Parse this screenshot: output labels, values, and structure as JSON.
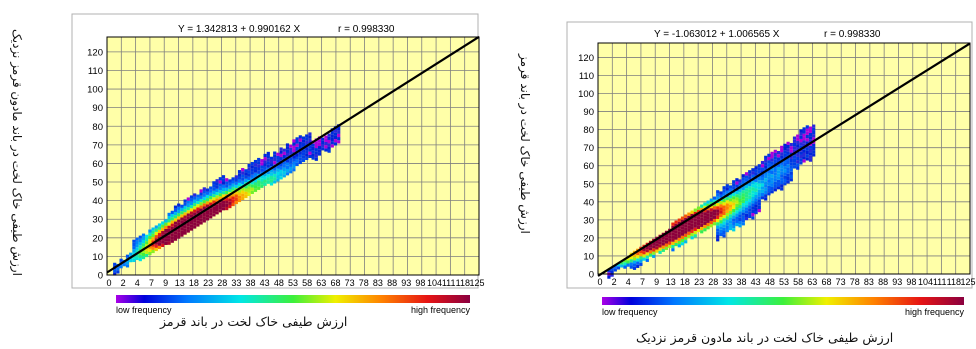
{
  "colors": {
    "plot_bg": "#ffffa8",
    "grid": "#7f7f7f",
    "fit_line": "#000000",
    "legend_low": "#0000e0",
    "legend_high": "#8b0040"
  },
  "chart_data": [
    {
      "type": "heatmap",
      "equation": "Y = 1.342813 + 0.990162 X",
      "r_label": "r = 0.998330",
      "ylabel": "ارزش طیفی خاک لخت در باند مادون قرمز نزدیک",
      "xlabel": "ارزش طیفی خاک لخت در باند قرمز",
      "legend": {
        "low": "low frequency",
        "high": "high frequency"
      },
      "x_ticks": [
        "0",
        "2",
        "4",
        "7",
        "9",
        "13",
        "18",
        "23",
        "28",
        "33",
        "38",
        "43",
        "48",
        "53",
        "58",
        "63",
        "68",
        "73",
        "78",
        "83",
        "88",
        "93",
        "98",
        "104",
        "111",
        "118",
        "125"
      ],
      "y_ticks": [
        "0",
        "10",
        "20",
        "30",
        "40",
        "50",
        "60",
        "70",
        "80",
        "90",
        "100",
        "110",
        "120"
      ],
      "xlim": [
        0,
        128
      ],
      "ylim": [
        0,
        128
      ],
      "fit": {
        "intercept": 1.342813,
        "slope": 0.990162
      },
      "density_clusters": [
        {
          "x": 5,
          "y": 5.5,
          "rx": 2.6,
          "ry": 1.6,
          "rot": 45,
          "w": 0.1
        },
        {
          "x": 11,
          "y": 11.5,
          "rx": 4.2,
          "ry": 2.2,
          "rot": 45,
          "w": 0.25
        },
        {
          "x": 18,
          "y": 18.5,
          "rx": 5.5,
          "ry": 3.0,
          "rot": 42,
          "w": 0.6
        },
        {
          "x": 24,
          "y": 24.5,
          "rx": 6.5,
          "ry": 3.5,
          "rot": 40,
          "w": 0.9
        },
        {
          "x": 31,
          "y": 31,
          "rx": 7,
          "ry": 3.8,
          "rot": 40,
          "w": 1.0
        },
        {
          "x": 38,
          "y": 37.5,
          "rx": 6.5,
          "ry": 3.8,
          "rot": 40,
          "w": 0.65
        },
        {
          "x": 46,
          "y": 44,
          "rx": 6,
          "ry": 3.5,
          "rot": 38,
          "w": 0.4
        },
        {
          "x": 55,
          "y": 52,
          "rx": 5.5,
          "ry": 3.0,
          "rot": 38,
          "w": 0.25
        },
        {
          "x": 63,
          "y": 59,
          "rx": 5.0,
          "ry": 2.5,
          "rot": 38,
          "w": 0.1
        }
      ],
      "point_spread": [
        {
          "x0": 2,
          "x1": 8,
          "below": 2,
          "above": 4
        },
        {
          "x0": 8,
          "x1": 20,
          "below": 3,
          "above": 10
        },
        {
          "x0": 20,
          "x1": 40,
          "below": 4,
          "above": 14
        },
        {
          "x0": 40,
          "x1": 55,
          "below": 5,
          "above": 11
        },
        {
          "x0": 55,
          "x1": 70,
          "below": 7,
          "above": 9
        },
        {
          "x0": 70,
          "x1": 80,
          "below": 9,
          "above": 2
        }
      ]
    },
    {
      "type": "heatmap",
      "equation": "Y = -1.063012 + 1.006565 X",
      "r_label": "r = 0.998330",
      "ylabel": "ارزش طیفی خاک لخت در باند قرمز",
      "xlabel": "ارزش طیفی خاک لخت در باند مادون قرمز نزدیک",
      "legend": {
        "low": "low frequency",
        "high": "high frequency"
      },
      "x_ticks": [
        "0",
        "2",
        "4",
        "7",
        "9",
        "13",
        "18",
        "23",
        "28",
        "33",
        "38",
        "43",
        "48",
        "53",
        "58",
        "63",
        "68",
        "73",
        "78",
        "83",
        "88",
        "93",
        "98",
        "104",
        "111",
        "118",
        "125"
      ],
      "y_ticks": [
        "0",
        "10",
        "20",
        "30",
        "40",
        "50",
        "60",
        "70",
        "80",
        "90",
        "100",
        "110",
        "120"
      ],
      "xlim": [
        0,
        128
      ],
      "ylim": [
        0,
        128
      ],
      "fit": {
        "intercept": -1.063012,
        "slope": 1.006565
      },
      "density_clusters": [
        {
          "x": 8,
          "y": 8,
          "rx": 3.5,
          "ry": 1.8,
          "rot": 30,
          "w": 0.3
        },
        {
          "x": 15,
          "y": 13.5,
          "rx": 5,
          "ry": 2.5,
          "rot": 30,
          "w": 0.6
        },
        {
          "x": 22,
          "y": 20,
          "rx": 6,
          "ry": 3.2,
          "rot": 32,
          "w": 0.9
        },
        {
          "x": 30,
          "y": 28.5,
          "rx": 6.5,
          "ry": 3.5,
          "rot": 35,
          "w": 1.0
        },
        {
          "x": 37,
          "y": 33,
          "rx": 6,
          "ry": 3.5,
          "rot": 40,
          "w": 0.7
        },
        {
          "x": 45,
          "y": 39,
          "rx": 5.5,
          "ry": 3.2,
          "rot": 45,
          "w": 0.4
        },
        {
          "x": 53,
          "y": 48,
          "rx": 5.0,
          "ry": 3.0,
          "rot": 50,
          "w": 0.25
        },
        {
          "x": 62,
          "y": 58,
          "rx": 4.5,
          "ry": 3.0,
          "rot": 55,
          "w": 0.15
        },
        {
          "x": 48,
          "y": 26,
          "rx": 4.5,
          "ry": 2.5,
          "rot": 10,
          "w": 0.2
        }
      ],
      "point_spread": [
        {
          "x0": 3,
          "x1": 10,
          "below": 3,
          "above": 2
        },
        {
          "x0": 10,
          "x1": 25,
          "below": 7,
          "above": 3
        },
        {
          "x0": 25,
          "x1": 40,
          "below": 10,
          "above": 5
        },
        {
          "x0": 40,
          "x1": 55,
          "below": 20,
          "above": 8
        },
        {
          "x0": 55,
          "x1": 66,
          "below": 14,
          "above": 10
        },
        {
          "x0": 66,
          "x1": 74,
          "below": 8,
          "above": 12
        }
      ]
    }
  ]
}
